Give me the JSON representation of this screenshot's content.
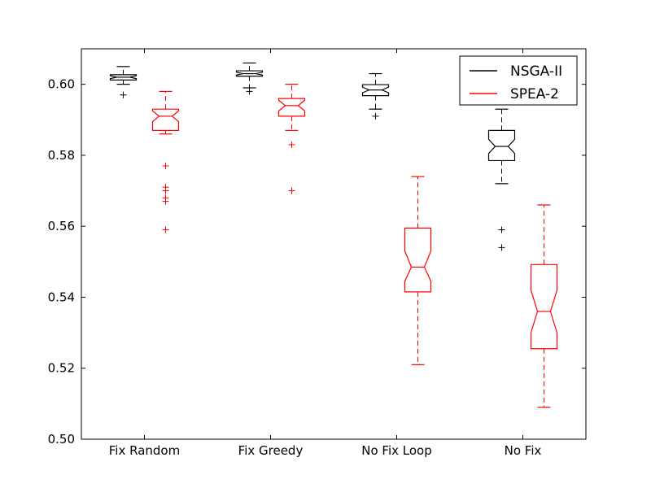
{
  "chart_data": {
    "type": "boxplot",
    "notched": true,
    "categories": [
      "Fix Random",
      "Fix Greedy",
      "No Fix Loop",
      "No Fix"
    ],
    "ylim": [
      0.5,
      0.61
    ],
    "yticks": [
      "0.50",
      "0.52",
      "0.54",
      "0.56",
      "0.58",
      "0.60"
    ],
    "title": "",
    "xlabel": "",
    "ylabel": "",
    "grid": false,
    "legend": {
      "placement": "top-right"
    },
    "series": [
      {
        "name": "NSGA-II",
        "color": "#000000",
        "boxes": [
          {
            "whisker_low": 0.6,
            "q1": 0.6012,
            "median": 0.602,
            "q3": 0.6027,
            "whisker_high": 0.605,
            "notch_low": 0.6016,
            "notch_high": 0.6024,
            "outliers": [
              0.597
            ]
          },
          {
            "whisker_low": 0.599,
            "q1": 0.6023,
            "median": 0.603,
            "q3": 0.6038,
            "whisker_high": 0.606,
            "notch_low": 0.6026,
            "notch_high": 0.6034,
            "outliers": [
              0.598
            ]
          },
          {
            "whisker_low": 0.593,
            "q1": 0.5968,
            "median": 0.5984,
            "q3": 0.5999,
            "whisker_high": 0.603,
            "notch_low": 0.5976,
            "notch_high": 0.5992,
            "outliers": [
              0.591
            ]
          },
          {
            "whisker_low": 0.572,
            "q1": 0.5785,
            "median": 0.5825,
            "q3": 0.587,
            "whisker_high": 0.593,
            "notch_low": 0.5805,
            "notch_high": 0.5845,
            "outliers": [
              0.559,
              0.554
            ]
          }
        ]
      },
      {
        "name": "SPEA-2",
        "color": "#ff0000",
        "boxes": [
          {
            "whisker_low": 0.586,
            "q1": 0.587,
            "median": 0.591,
            "q3": 0.593,
            "whisker_high": 0.598,
            "notch_low": 0.5895,
            "notch_high": 0.5925,
            "outliers": [
              0.577,
              0.571,
              0.57,
              0.568,
              0.567,
              0.559
            ]
          },
          {
            "whisker_low": 0.587,
            "q1": 0.591,
            "median": 0.594,
            "q3": 0.596,
            "whisker_high": 0.6,
            "notch_low": 0.5925,
            "notch_high": 0.5955,
            "outliers": [
              0.583,
              0.57
            ]
          },
          {
            "whisker_low": 0.521,
            "q1": 0.5415,
            "median": 0.5485,
            "q3": 0.5595,
            "whisker_high": 0.574,
            "notch_low": 0.5445,
            "notch_high": 0.553,
            "outliers": []
          },
          {
            "whisker_low": 0.509,
            "q1": 0.5255,
            "median": 0.536,
            "q3": 0.5492,
            "whisker_high": 0.566,
            "notch_low": 0.53,
            "notch_high": 0.542,
            "outliers": []
          }
        ]
      }
    ]
  }
}
